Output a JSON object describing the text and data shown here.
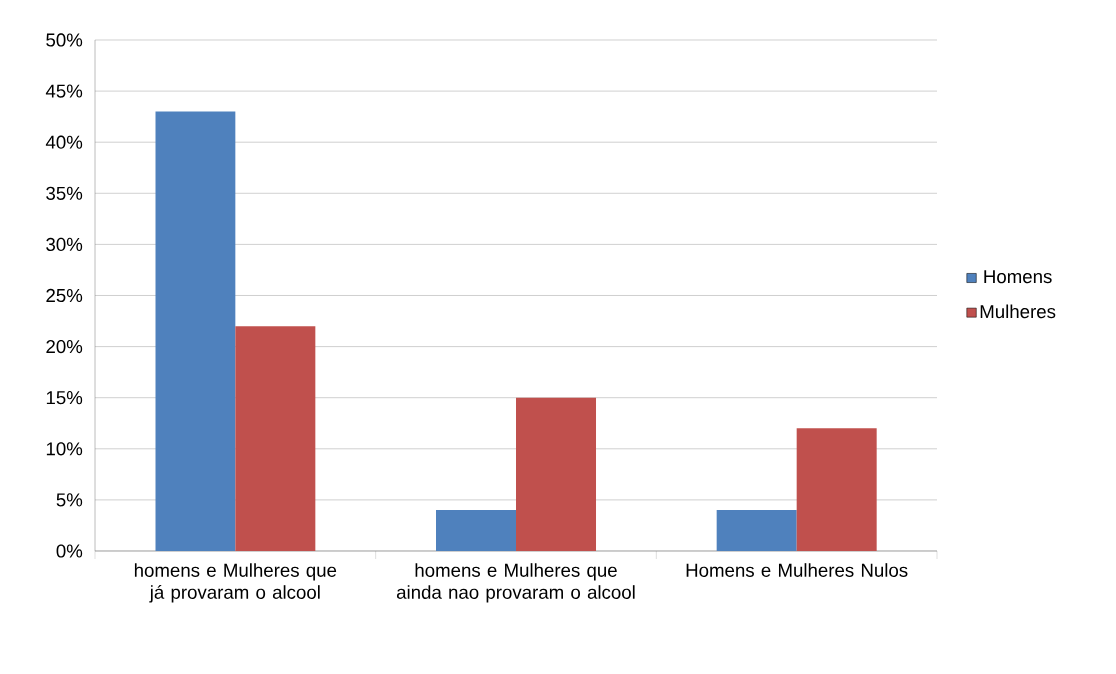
{
  "chart_data": {
    "type": "bar",
    "categories": [
      "homens e Mulheres que já provaram o alcool",
      "homens e Mulheres que ainda nao provaram o alcool",
      "Homens e Mulheres Nulos"
    ],
    "series": [
      {
        "name": "Homens",
        "color": "#4f81bd",
        "values": [
          43,
          4,
          4
        ]
      },
      {
        "name": "Mulheres",
        "color": "#c0504d",
        "values": [
          22,
          15,
          12
        ]
      }
    ],
    "ylim": [
      0,
      50
    ],
    "yticks": [
      {
        "value": 0,
        "label": "0%"
      },
      {
        "value": 5,
        "label": "5%"
      },
      {
        "value": 10,
        "label": "10%"
      },
      {
        "value": 15,
        "label": "15%"
      },
      {
        "value": 20,
        "label": "20%"
      },
      {
        "value": 25,
        "label": "25%"
      },
      {
        "value": 30,
        "label": "30%"
      },
      {
        "value": 35,
        "label": "35%"
      },
      {
        "value": 40,
        "label": "40%"
      },
      {
        "value": 45,
        "label": "45%"
      },
      {
        "value": 50,
        "label": "50%"
      }
    ],
    "grid": "y",
    "legend": "right"
  }
}
